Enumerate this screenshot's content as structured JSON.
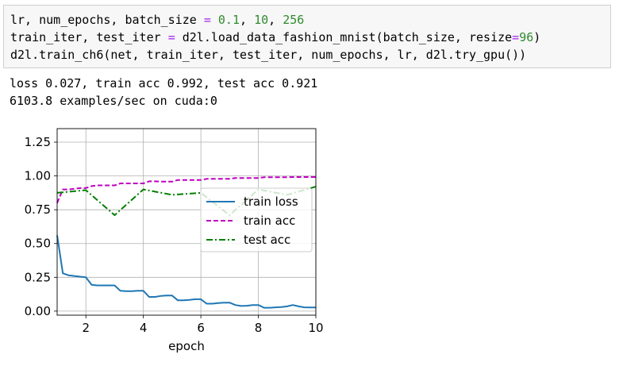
{
  "code": {
    "line1": {
      "a": "lr, num_epochs, batch_size ",
      "eq": "=",
      "b": " ",
      "n1": "0.1",
      "c": ", ",
      "n2": "10",
      "d": ", ",
      "n3": "256"
    },
    "line2": {
      "a": "train_iter, test_iter ",
      "eq": "=",
      "b": " d2l.load_data_fashion_mnist(batch_size, resize",
      "eq2": "=",
      "n1": "96",
      "c": ")"
    },
    "line3": "d2l.train_ch6(net, train_iter, test_iter, num_epochs, lr, d2l.try_gpu())"
  },
  "output": {
    "line1": "loss 0.027, train acc 0.992, test acc 0.921",
    "line2": "6103.8 examples/sec on cuda:0"
  },
  "chart_data": {
    "type": "line",
    "xlabel": "epoch",
    "ylabel": "",
    "xlim": [
      1,
      10
    ],
    "ylim": [
      -0.03,
      1.35
    ],
    "xticks": [
      "2",
      "4",
      "6",
      "8",
      "10"
    ],
    "yticks": [
      "0.00",
      "0.25",
      "0.50",
      "0.75",
      "1.00",
      "1.25"
    ],
    "grid": true,
    "legend_position": "center-right",
    "series": [
      {
        "name": "train loss",
        "color": "#1f77b4",
        "style": "solid",
        "x": [
          1.0,
          1.2,
          1.4,
          1.6,
          1.8,
          2.0,
          2.2,
          2.4,
          2.6,
          2.8,
          3.0,
          3.2,
          3.4,
          3.6,
          3.8,
          4.0,
          4.2,
          4.4,
          4.6,
          4.8,
          5.0,
          5.2,
          5.4,
          5.6,
          5.8,
          6.0,
          6.2,
          6.4,
          6.6,
          6.8,
          7.0,
          7.2,
          7.4,
          7.6,
          7.8,
          8.0,
          8.2,
          8.4,
          8.6,
          8.8,
          9.0,
          9.2,
          9.4,
          9.6,
          9.8,
          10.0
        ],
        "values": [
          0.56,
          0.28,
          0.265,
          0.26,
          0.255,
          0.25,
          0.195,
          0.19,
          0.19,
          0.19,
          0.19,
          0.15,
          0.148,
          0.148,
          0.15,
          0.15,
          0.105,
          0.105,
          0.112,
          0.115,
          0.115,
          0.08,
          0.08,
          0.083,
          0.088,
          0.088,
          0.055,
          0.055,
          0.06,
          0.063,
          0.063,
          0.045,
          0.038,
          0.04,
          0.045,
          0.045,
          0.025,
          0.025,
          0.028,
          0.03,
          0.035,
          0.045,
          0.035,
          0.028,
          0.027,
          0.027
        ]
      },
      {
        "name": "train acc",
        "color": "#bf00bf",
        "style": "dashed",
        "x": [
          1.0,
          1.2,
          1.4,
          1.6,
          1.8,
          2.0,
          2.2,
          2.4,
          2.6,
          2.8,
          3.0,
          3.2,
          3.4,
          3.6,
          3.8,
          4.0,
          4.2,
          4.4,
          4.6,
          4.8,
          5.0,
          5.2,
          5.4,
          5.6,
          5.8,
          6.0,
          6.2,
          6.4,
          6.6,
          6.8,
          7.0,
          7.2,
          7.4,
          7.6,
          7.8,
          8.0,
          8.2,
          8.4,
          8.6,
          8.8,
          9.0,
          9.2,
          9.4,
          9.6,
          9.8,
          10.0
        ],
        "values": [
          0.8,
          0.9,
          0.9,
          0.905,
          0.91,
          0.91,
          0.925,
          0.93,
          0.93,
          0.93,
          0.93,
          0.945,
          0.945,
          0.945,
          0.945,
          0.945,
          0.96,
          0.96,
          0.958,
          0.958,
          0.958,
          0.97,
          0.97,
          0.97,
          0.97,
          0.97,
          0.978,
          0.978,
          0.978,
          0.979,
          0.979,
          0.984,
          0.984,
          0.985,
          0.985,
          0.985,
          0.99,
          0.99,
          0.99,
          0.99,
          0.99,
          0.992,
          0.992,
          0.992,
          0.992,
          0.992
        ]
      },
      {
        "name": "test acc",
        "color": "#008000",
        "style": "dashdot",
        "x": [
          1,
          2,
          3,
          4,
          5,
          6,
          7,
          8,
          9,
          10
        ],
        "values": [
          0.875,
          0.895,
          0.71,
          0.9,
          0.86,
          0.875,
          0.71,
          0.9,
          0.86,
          0.921
        ]
      }
    ]
  }
}
